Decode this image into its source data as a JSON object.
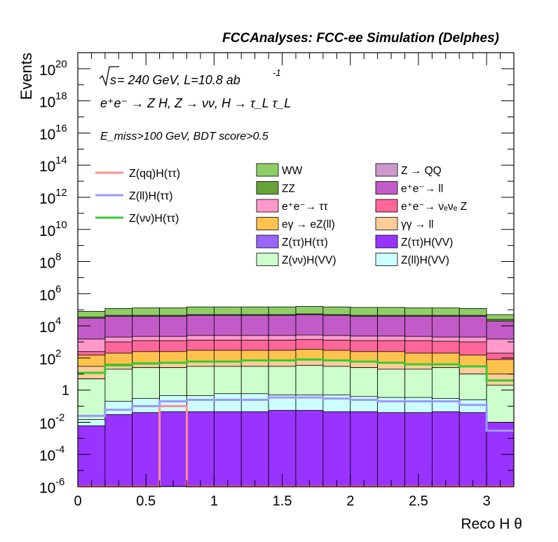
{
  "header": {
    "title": "FCCAnalyses: FCC-ee Simulation (Delphes)"
  },
  "annotations": {
    "line1": {
      "sqrt": "s",
      "rest": " = 240 GeV, L=10.8 ab",
      "sup": "-1"
    },
    "line2": "e⁺e⁻ → Z H, Z → νν, H → τ_L τ_L",
    "line3": "E_miss>100 GeV, BDT score>0.5"
  },
  "legend_left": [
    {
      "label": "Z(qq)H(ττ)",
      "color": "#ff8f8f"
    },
    {
      "label": "Z(ll)H(ττ)",
      "color": "#9999ff"
    },
    {
      "label": "Z(νν)H(ττ)",
      "color": "#33cc33"
    }
  ],
  "legend_right": [
    {
      "label": "WW",
      "color": "#8fce66"
    },
    {
      "label": "Z → QQ",
      "color": "#cc99cc"
    },
    {
      "label": "ZZ",
      "color": "#66a336"
    },
    {
      "label": "e⁺e⁻→ ll",
      "color": "#c25bc8"
    },
    {
      "label": "e⁺e⁻→ ττ",
      "color": "#ff99cc"
    },
    {
      "label": "e⁺e⁻→ νₑνₑ Z",
      "color": "#ff6699"
    },
    {
      "label": "eγ → eZ(ll)",
      "color": "#ffc34d"
    },
    {
      "label": "γγ → ll",
      "color": "#ffcc99"
    },
    {
      "label": "Z(ττ)H(ττ)",
      "color": "#9966ff"
    },
    {
      "label": "Z(ττ)H(VV)",
      "color": "#9933ff"
    },
    {
      "label": "Z(νν)H(VV)",
      "color": "#ccffcc"
    },
    {
      "label": "Z(ll)H(VV)",
      "color": "#ccffff"
    }
  ],
  "chart_data": {
    "type": "area",
    "title": "FCCAnalyses: FCC-ee Simulation (Delphes)",
    "xlabel": "Reco H θ",
    "ylabel": "Events",
    "yscale": "log",
    "xlim": [
      0,
      3.2
    ],
    "ylim": [
      1e-06,
      1e+21
    ],
    "grid": false,
    "x_ticks": [
      "0",
      "0.5",
      "1",
      "1.5",
      "2",
      "2.5",
      "3"
    ],
    "y_ticks": [
      {
        "base": "10",
        "exp": "20"
      },
      {
        "base": "10",
        "exp": "18"
      },
      {
        "base": "10",
        "exp": "16"
      },
      {
        "base": "10",
        "exp": "14"
      },
      {
        "base": "10",
        "exp": "12"
      },
      {
        "base": "10",
        "exp": "10"
      },
      {
        "base": "10",
        "exp": "8"
      },
      {
        "base": "10",
        "exp": "6"
      },
      {
        "base": "10",
        "exp": "4"
      },
      {
        "base": "10",
        "exp": "2"
      },
      {
        "base": "1",
        "exp": ""
      },
      {
        "base": "10",
        "exp": "-2"
      },
      {
        "base": "10",
        "exp": "-4"
      },
      {
        "base": "10",
        "exp": "-6"
      }
    ],
    "bin_edges": [
      0,
      0.2,
      0.4,
      0.6,
      0.8,
      1.0,
      1.2,
      1.4,
      1.6,
      1.8,
      2.0,
      2.2,
      2.4,
      2.6,
      2.8,
      3.0,
      3.2
    ],
    "stack_cumulative": [
      {
        "name": "Z(ττ)H(VV)",
        "color": "#9933ff",
        "values": [
          0.006,
          0.03,
          0.04,
          0.045,
          0.045,
          0.045,
          0.045,
          0.055,
          0.055,
          0.045,
          0.045,
          0.04,
          0.04,
          0.045,
          0.04,
          0.01
        ]
      },
      {
        "name": "Z(ll)H(VV)",
        "color": "#ccffff",
        "values": [
          0.015,
          0.2,
          0.3,
          0.45,
          0.45,
          0.6,
          0.6,
          0.5,
          0.5,
          0.5,
          0.4,
          0.35,
          0.35,
          0.3,
          0.25,
          0.01
        ]
      },
      {
        "name": "Z(νν)H(VV)",
        "color": "#ccffcc",
        "values": [
          5,
          20,
          25,
          25,
          30,
          30,
          30,
          30,
          35,
          30,
          25,
          20,
          20,
          25,
          10,
          2
        ]
      },
      {
        "name": "Z → QQ",
        "color": "#cc99cc",
        "values": [
          5,
          20,
          25,
          25,
          30,
          30,
          30,
          30,
          35,
          30,
          25,
          20,
          20,
          25,
          10,
          0.5
        ]
      },
      {
        "name": "γγ → ll",
        "color": "#ffcc99",
        "values": [
          30,
          40,
          50,
          50,
          60,
          60,
          70,
          70,
          80,
          70,
          60,
          50,
          40,
          40,
          30,
          10
        ]
      },
      {
        "name": "eγ → eZ(ll)",
        "color": "#ffc34d",
        "values": [
          150,
          200,
          250,
          250,
          300,
          300,
          300,
          300,
          350,
          300,
          250,
          250,
          200,
          200,
          150,
          80
        ]
      },
      {
        "name": "e⁺e⁻→ νₑνₑ Z",
        "color": "#ff6699",
        "values": [
          250,
          1000,
          1200,
          1200,
          1300,
          1300,
          1300,
          1300,
          1400,
          1300,
          1200,
          1200,
          1200,
          1100,
          1000,
          200
        ]
      },
      {
        "name": "e⁺e⁻→ ττ",
        "color": "#ff99cc",
        "values": [
          1500,
          2000,
          2200,
          2200,
          2500,
          2500,
          2500,
          2500,
          2700,
          2500,
          2300,
          2300,
          2200,
          2000,
          2000,
          1500
        ]
      },
      {
        "name": "e⁺e⁻→ ll",
        "color": "#c25bc8",
        "values": [
          30000,
          40000,
          40000,
          40000,
          45000,
          45000,
          45000,
          45000,
          50000,
          45000,
          40000,
          40000,
          40000,
          40000,
          40000,
          20000
        ]
      },
      {
        "name": "ZZ",
        "color": "#66a336",
        "values": [
          35000,
          45000,
          45000,
          45000,
          50000,
          50000,
          50000,
          50000,
          55000,
          50000,
          45000,
          45000,
          45000,
          45000,
          45000,
          25000
        ]
      },
      {
        "name": "WW",
        "color": "#8fce66",
        "values": [
          80000,
          120000,
          130000,
          130000,
          150000,
          150000,
          150000,
          150000,
          160000,
          150000,
          140000,
          140000,
          130000,
          130000,
          120000,
          50000
        ]
      }
    ],
    "signal_lines": [
      {
        "name": "Z(qq)H(ττ)",
        "color": "#ff8f8f",
        "values": [
          1e-06,
          1e-06,
          1e-06,
          0.1,
          1e-06,
          1e-06,
          1e-06,
          1e-06,
          1e-06,
          1e-06,
          1e-06,
          1e-06,
          1e-06,
          1e-06,
          1e-06,
          1e-06
        ]
      },
      {
        "name": "Z(ll)H(ττ)",
        "color": "#9999ff",
        "values": [
          0.025,
          0.06,
          0.1,
          0.2,
          0.25,
          0.25,
          0.25,
          0.35,
          0.35,
          0.3,
          0.25,
          0.2,
          0.2,
          0.2,
          0.12,
          0.003
        ]
      },
      {
        "name": "Z(νν)H(ττ)",
        "color": "#33cc33",
        "values": [
          12,
          35,
          45,
          50,
          60,
          60,
          70,
          70,
          80,
          70,
          60,
          50,
          40,
          40,
          30,
          4
        ]
      }
    ]
  }
}
